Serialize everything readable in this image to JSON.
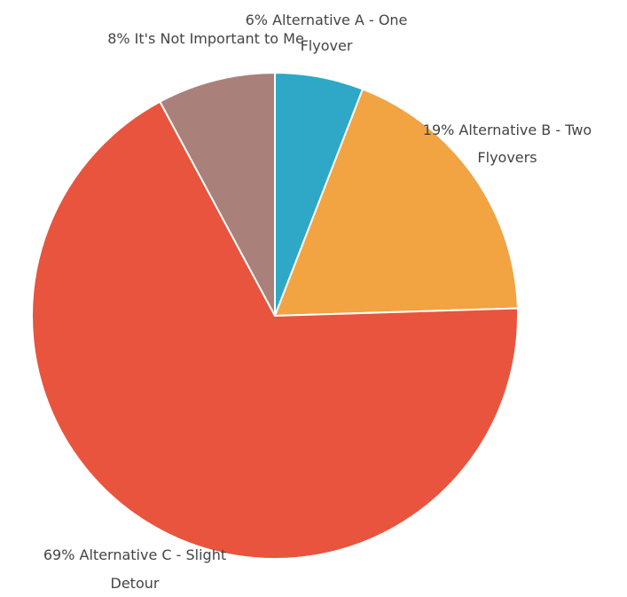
{
  "chart_data": {
    "type": "pie",
    "slices": [
      {
        "label": "Alternative A - One Flyover",
        "value": 6,
        "display": "6%",
        "color": "#2ea8c6"
      },
      {
        "label": "Alternative B - Two Flyovers",
        "value": 19,
        "display": "19%",
        "color": "#f2a342"
      },
      {
        "label": "Alternative C - Slight Detour",
        "value": 69,
        "display": "69%",
        "color": "#e8543d"
      },
      {
        "label": "It's Not Important to Me",
        "value": 8,
        "display": "8%",
        "color": "#a9807a"
      }
    ]
  }
}
